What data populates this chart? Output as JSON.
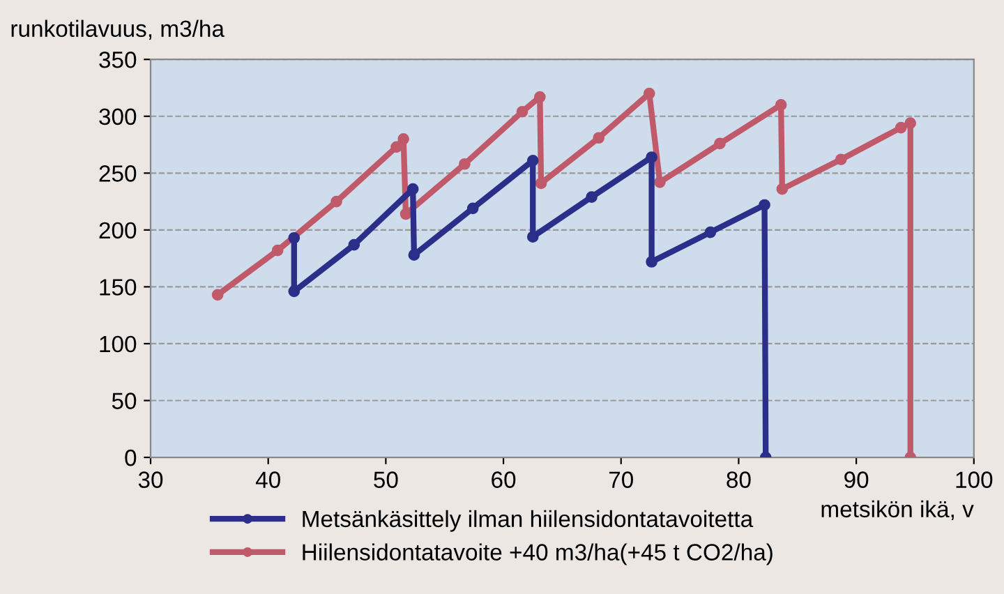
{
  "chart_data": {
    "type": "line",
    "ylabel": "runkotilavuus, m3/ha",
    "xlabel": "metsikön ikä, v",
    "xlim": [
      30,
      100
    ],
    "xticks": [
      30,
      40,
      50,
      60,
      70,
      80,
      90,
      100
    ],
    "ylim": [
      0,
      350
    ],
    "yticks": [
      0,
      50,
      100,
      150,
      200,
      250,
      300,
      350
    ],
    "grid": "y",
    "legend": "bottom left",
    "marker": "circle",
    "line_style": "solid",
    "series": [
      {
        "name": "Metsänkäsittely ilman hiilensidontatavoitetta",
        "color": "#2b2f8a",
        "x": [
          42.2,
          42.2,
          47.3,
          52.3,
          52.4,
          57.4,
          62.5,
          62.5,
          67.5,
          72.6,
          72.6,
          77.6,
          82.2,
          82.3
        ],
        "values": [
          193,
          146,
          187,
          236,
          178,
          219,
          261,
          194,
          229,
          264,
          172,
          198,
          222,
          0
        ]
      },
      {
        "name": "Hiilensidontatavoite +40 m3/ha(+45 t CO2/ha)",
        "color": "#c05a6a",
        "x": [
          35.7,
          40.8,
          45.8,
          50.9,
          51.5,
          51.7,
          56.7,
          61.6,
          63.1,
          63.2,
          68.1,
          72.4,
          73.3,
          78.4,
          83.6,
          83.7,
          88.7,
          93.8,
          94.6,
          94.6
        ],
        "values": [
          143,
          182,
          225,
          273,
          280,
          214,
          258,
          304,
          317,
          241,
          281,
          320,
          242,
          276,
          310,
          236,
          262,
          290,
          294,
          0
        ]
      }
    ]
  }
}
